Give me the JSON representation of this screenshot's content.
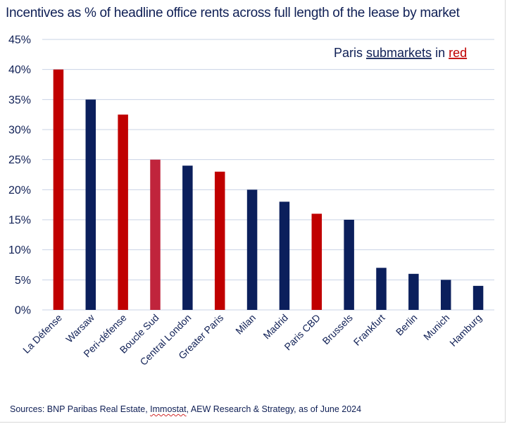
{
  "title": "Incentives as % of headline office rents across full length of the lease by market",
  "annotation": {
    "prefix": "Paris ",
    "underlined_word": "submarkets",
    "middle": " in ",
    "highlight_word": "red"
  },
  "source": {
    "part1": "Sources: BNP Paribas Real Estate, ",
    "underlined": "Immostat",
    "part2": ", AEW Research & Strategy, as of June 2024"
  },
  "colors": {
    "paris": "#c00000",
    "paris_alt": "#c0243c",
    "other": "#0b1f5c",
    "grid": "#c9d3e6",
    "text": "#0f1f55"
  },
  "chart_data": {
    "type": "bar",
    "categories": [
      "La Défense",
      "Warsaw",
      "Peri-défense",
      "Boucle Sud",
      "Central London",
      "Greater Paris",
      "Milan",
      "Madrid",
      "Paris CBD",
      "Brussels",
      "Frankfurt",
      "Berlin",
      "Munich",
      "Hamburg"
    ],
    "values": [
      40,
      35,
      32.5,
      25,
      24,
      23,
      20,
      18,
      16,
      15,
      7,
      6,
      5,
      4
    ],
    "bar_colors": [
      "paris",
      "other",
      "paris",
      "paris_alt",
      "other",
      "paris",
      "other",
      "other",
      "paris",
      "other",
      "other",
      "other",
      "other",
      "other"
    ],
    "y_ticks": [
      "0%",
      "5%",
      "10%",
      "15%",
      "20%",
      "25%",
      "30%",
      "35%",
      "40%",
      "45%"
    ],
    "ylim": [
      0,
      45
    ],
    "grid": true,
    "legend": "none"
  }
}
